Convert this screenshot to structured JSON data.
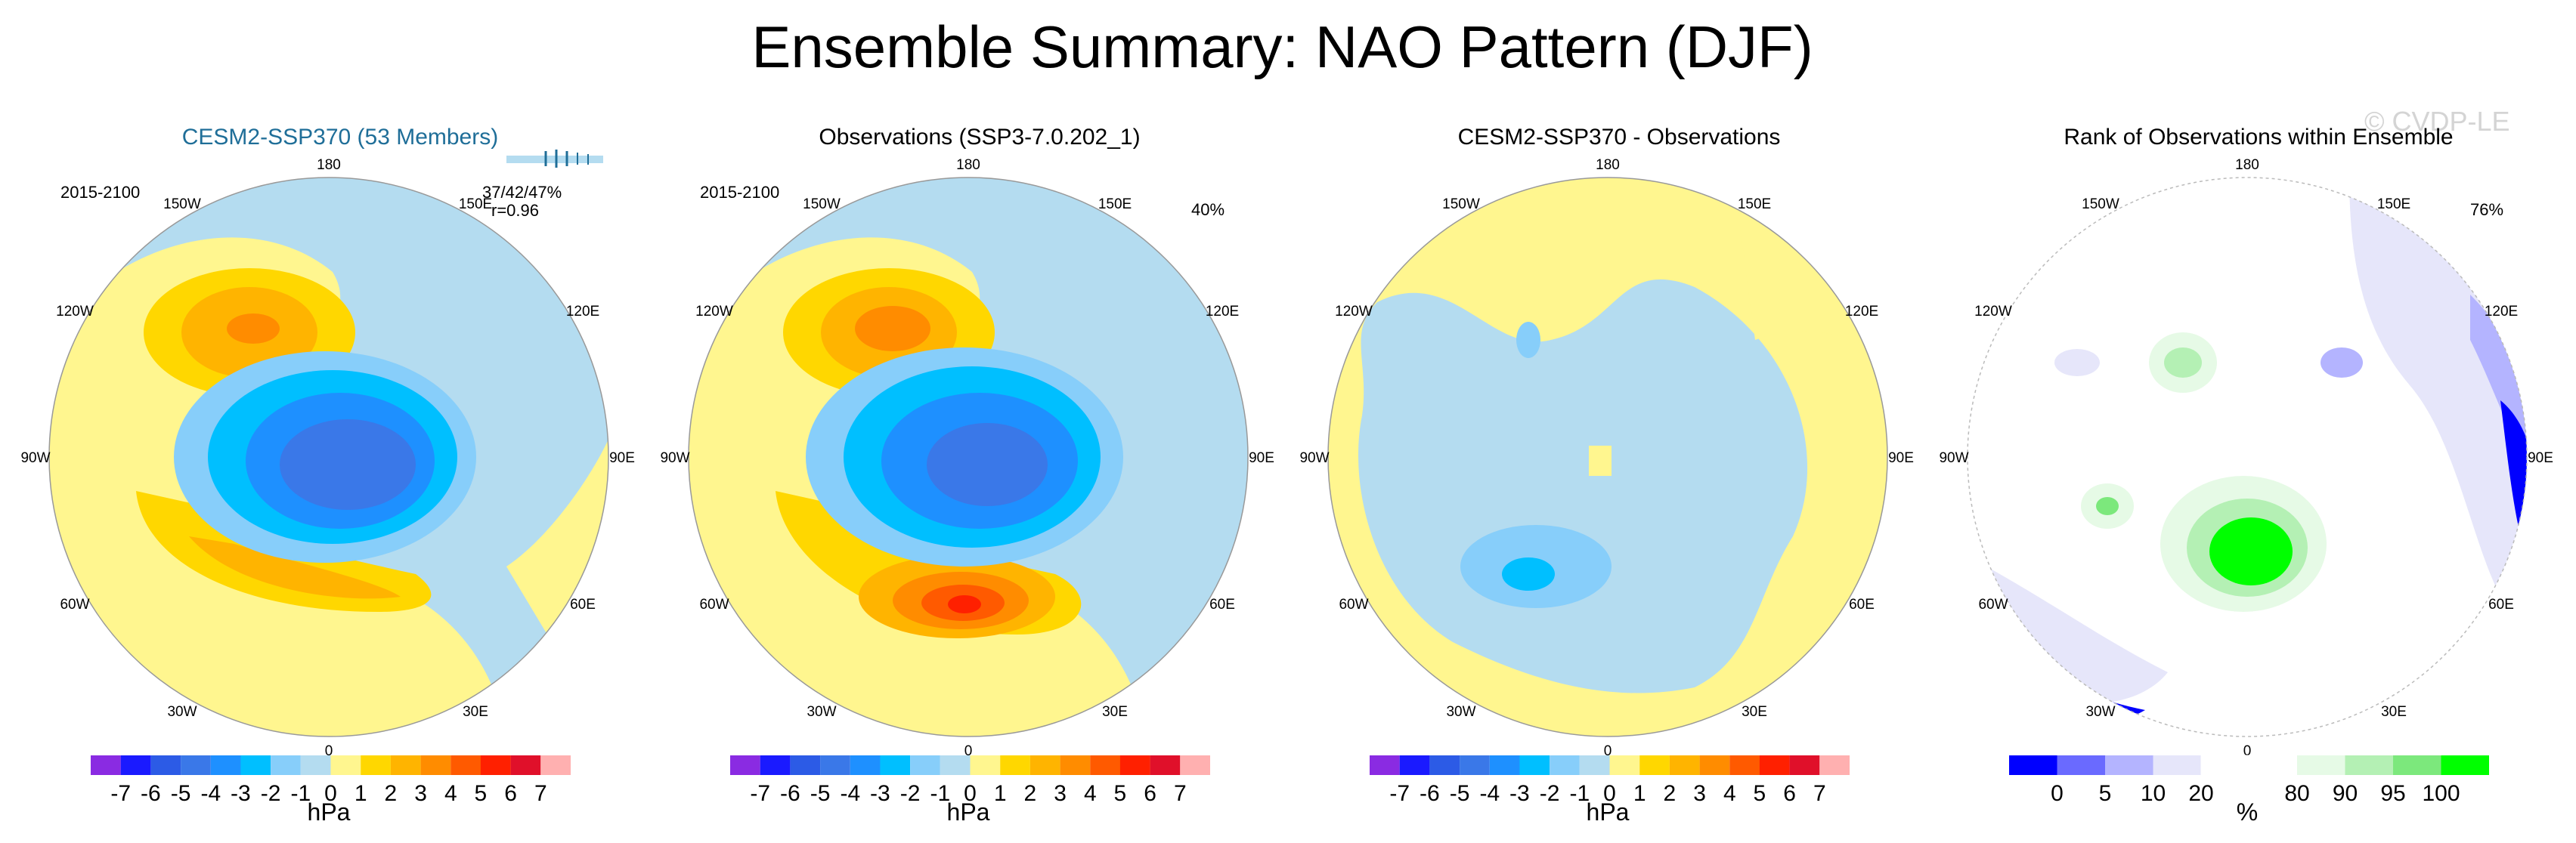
{
  "title": "Ensemble Summary: NAO Pattern (DJF)",
  "watermark": "© CVDP-LE",
  "chart_data": [
    {
      "type": "map",
      "title": "CESM2-SSP370 (53 Members)",
      "period": "2015-2100",
      "stats": {
        "pct_line": "37/42/47%",
        "r_line": "r=0.96"
      },
      "lon_labels": [
        "180",
        "150E",
        "120E",
        "90E",
        "60E",
        "30E",
        "0",
        "30W",
        "60W",
        "90W",
        "120W",
        "150W"
      ],
      "colorbar": {
        "ticks": [
          "-7",
          "-6",
          "-5",
          "-4",
          "-3",
          "-2",
          "-1",
          "0",
          "1",
          "2",
          "3",
          "4",
          "5",
          "6",
          "7"
        ],
        "unit": "hPa"
      }
    },
    {
      "type": "map",
      "title": "Observations (SSP3-7.0.202_1)",
      "period": "2015-2100",
      "percent": "40%",
      "lon_labels": [
        "180",
        "150E",
        "120E",
        "90E",
        "60E",
        "30E",
        "0",
        "30W",
        "60W",
        "90W",
        "120W",
        "150W"
      ],
      "colorbar": {
        "ticks": [
          "-7",
          "-6",
          "-5",
          "-4",
          "-3",
          "-2",
          "-1",
          "0",
          "1",
          "2",
          "3",
          "4",
          "5",
          "6",
          "7"
        ],
        "unit": "hPa"
      }
    },
    {
      "type": "map",
      "title": "CESM2-SSP370 - Observations",
      "lon_labels": [
        "180",
        "150E",
        "120E",
        "90E",
        "60E",
        "30E",
        "0",
        "30W",
        "60W",
        "90W",
        "120W",
        "150W"
      ],
      "colorbar": {
        "ticks": [
          "-7",
          "-6",
          "-5",
          "-4",
          "-3",
          "-2",
          "-1",
          "0",
          "1",
          "2",
          "3",
          "4",
          "5",
          "6",
          "7"
        ],
        "unit": "hPa"
      }
    },
    {
      "type": "map",
      "title": "Rank of Observations within Ensemble",
      "percent": "76%",
      "lon_labels": [
        "180",
        "150E",
        "120E",
        "90E",
        "60E",
        "30E",
        "0",
        "30W",
        "60W",
        "90W",
        "120W",
        "150W"
      ],
      "colorbar": {
        "ticks": [
          "0",
          "5",
          "10",
          "20",
          "80",
          "90",
          "95",
          "100"
        ],
        "unit": "%"
      }
    }
  ],
  "palettes": {
    "hpa": [
      "#8a2be2",
      "#1a1aff",
      "#2c5be6",
      "#3a78e8",
      "#1e90ff",
      "#00bfff",
      "#87cefa",
      "#b4dcf0",
      "#fff68f",
      "#ffd700",
      "#ffb400",
      "#ff8c00",
      "#ff5a00",
      "#ff2000",
      "#e0102a",
      "#ffb0b0"
    ],
    "rank": [
      "#0000ff",
      "#6a6aff",
      "#b4b4ff",
      "#e6e6fa",
      "#ffffff",
      "#ffffff",
      "#e6fae6",
      "#b4f0b4",
      "#7ce87c",
      "#00ff00"
    ]
  }
}
